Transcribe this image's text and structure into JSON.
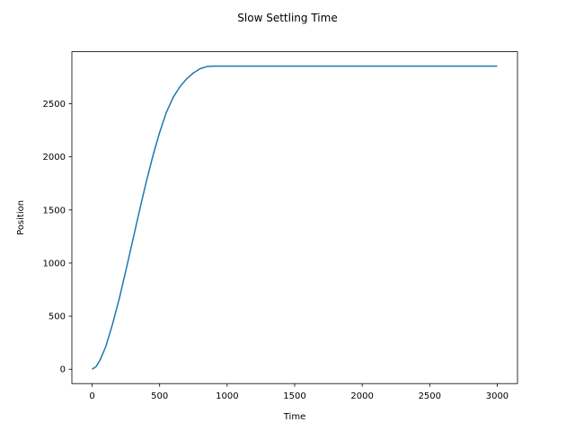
{
  "chart_data": {
    "type": "line",
    "title": "Slow Settling Time",
    "xlabel": "Time",
    "ylabel": "Position",
    "xlim": [
      -150,
      3150
    ],
    "ylim": [
      -135,
      2990
    ],
    "xticks": [
      0,
      500,
      1000,
      1500,
      2000,
      2500,
      3000
    ],
    "yticks": [
      0,
      500,
      1000,
      1500,
      2000,
      2500
    ],
    "grid": false,
    "series": [
      {
        "color": "#1f77b4",
        "x": [
          0,
          30,
          60,
          100,
          150,
          200,
          250,
          300,
          350,
          400,
          450,
          500,
          550,
          600,
          650,
          700,
          750,
          800,
          850,
          900,
          1000,
          1500,
          2000,
          2500,
          3000
        ],
        "y": [
          0,
          25,
          90,
          210,
          420,
          660,
          930,
          1210,
          1490,
          1760,
          2010,
          2230,
          2420,
          2560,
          2660,
          2735,
          2790,
          2830,
          2850,
          2855,
          2855,
          2855,
          2855,
          2855,
          2855
        ]
      }
    ]
  }
}
